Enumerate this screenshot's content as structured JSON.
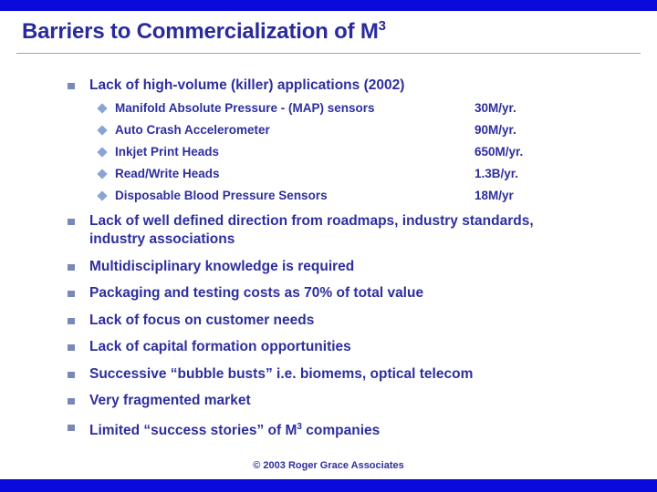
{
  "slide": {
    "title_main": "Barriers to Commercialization of M",
    "title_sup": "3",
    "footer": "© 2003 Roger Grace Associates"
  },
  "bullets": [
    {
      "text": "Lack of high-volume (killer) applications (2002)",
      "sub": [
        {
          "label": "Manifold Absolute Pressure - (MAP) sensors",
          "value": "30M/yr."
        },
        {
          "label": "Auto Crash Accelerometer",
          "value": "90M/yr."
        },
        {
          "label": "Inkjet Print Heads",
          "value": "650M/yr."
        },
        {
          "label": "Read/Write Heads",
          "value": "1.3B/yr."
        },
        {
          "label": "Disposable Blood Pressure Sensors",
          "value": "18M/yr"
        }
      ]
    },
    {
      "text_line1": "Lack of well defined direction from roadmaps, industry standards,",
      "text_line2": "industry associations"
    },
    {
      "text": "Multidisciplinary knowledge is required"
    },
    {
      "text": "Packaging and testing costs as 70% of total value"
    },
    {
      "text": "Lack of focus on customer needs"
    },
    {
      "text": "Lack of capital formation opportunities"
    },
    {
      "text": "Successive “bubble busts” i.e. biomems, optical telecom"
    },
    {
      "text": "Very fragmented market"
    },
    {
      "text_pre": "Limited “success stories” of M",
      "text_sup": "3",
      "text_post": " companies"
    }
  ]
}
